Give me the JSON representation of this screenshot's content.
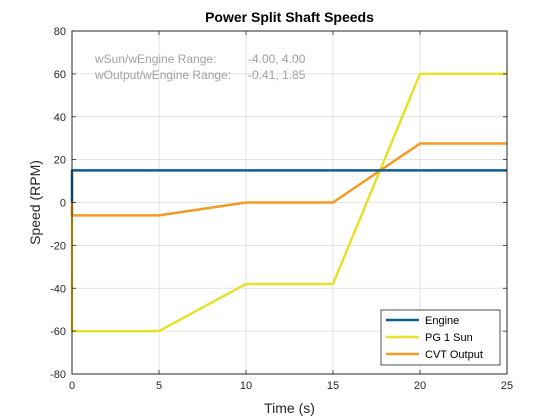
{
  "chart_data": {
    "type": "line",
    "title": "Power Split Shaft Speeds",
    "xlabel": "Time (s)",
    "ylabel": "Speed (RPM)",
    "xlim": [
      0,
      25
    ],
    "ylim": [
      -80,
      80
    ],
    "xticks": [
      0,
      5,
      10,
      15,
      20,
      25
    ],
    "yticks": [
      -80,
      -60,
      -40,
      -20,
      0,
      20,
      40,
      60,
      80
    ],
    "grid": true,
    "legend_position": "bottom-right",
    "annotations": [
      {
        "label": "wSun/wEngine Range:",
        "value": "-4.00, 4.00"
      },
      {
        "label": "wOutput/wEngine Range:",
        "value": "-0.41, 1.85"
      }
    ],
    "series": [
      {
        "name": "Engine",
        "color": "#0e5c91",
        "x": [
          0,
          0,
          25
        ],
        "y": [
          0,
          15,
          15
        ]
      },
      {
        "name": "PG 1 Sun",
        "color": "#e8e02a",
        "x": [
          0,
          0,
          5,
          10,
          15,
          20,
          25
        ],
        "y": [
          0,
          -60,
          -60,
          -38,
          -38,
          60,
          60
        ]
      },
      {
        "name": "CVT Output",
        "color": "#f59a23",
        "x": [
          0,
          0,
          5,
          10,
          15,
          20,
          25
        ],
        "y": [
          0,
          -6,
          -6,
          0,
          0,
          27.5,
          27.5
        ]
      }
    ]
  }
}
